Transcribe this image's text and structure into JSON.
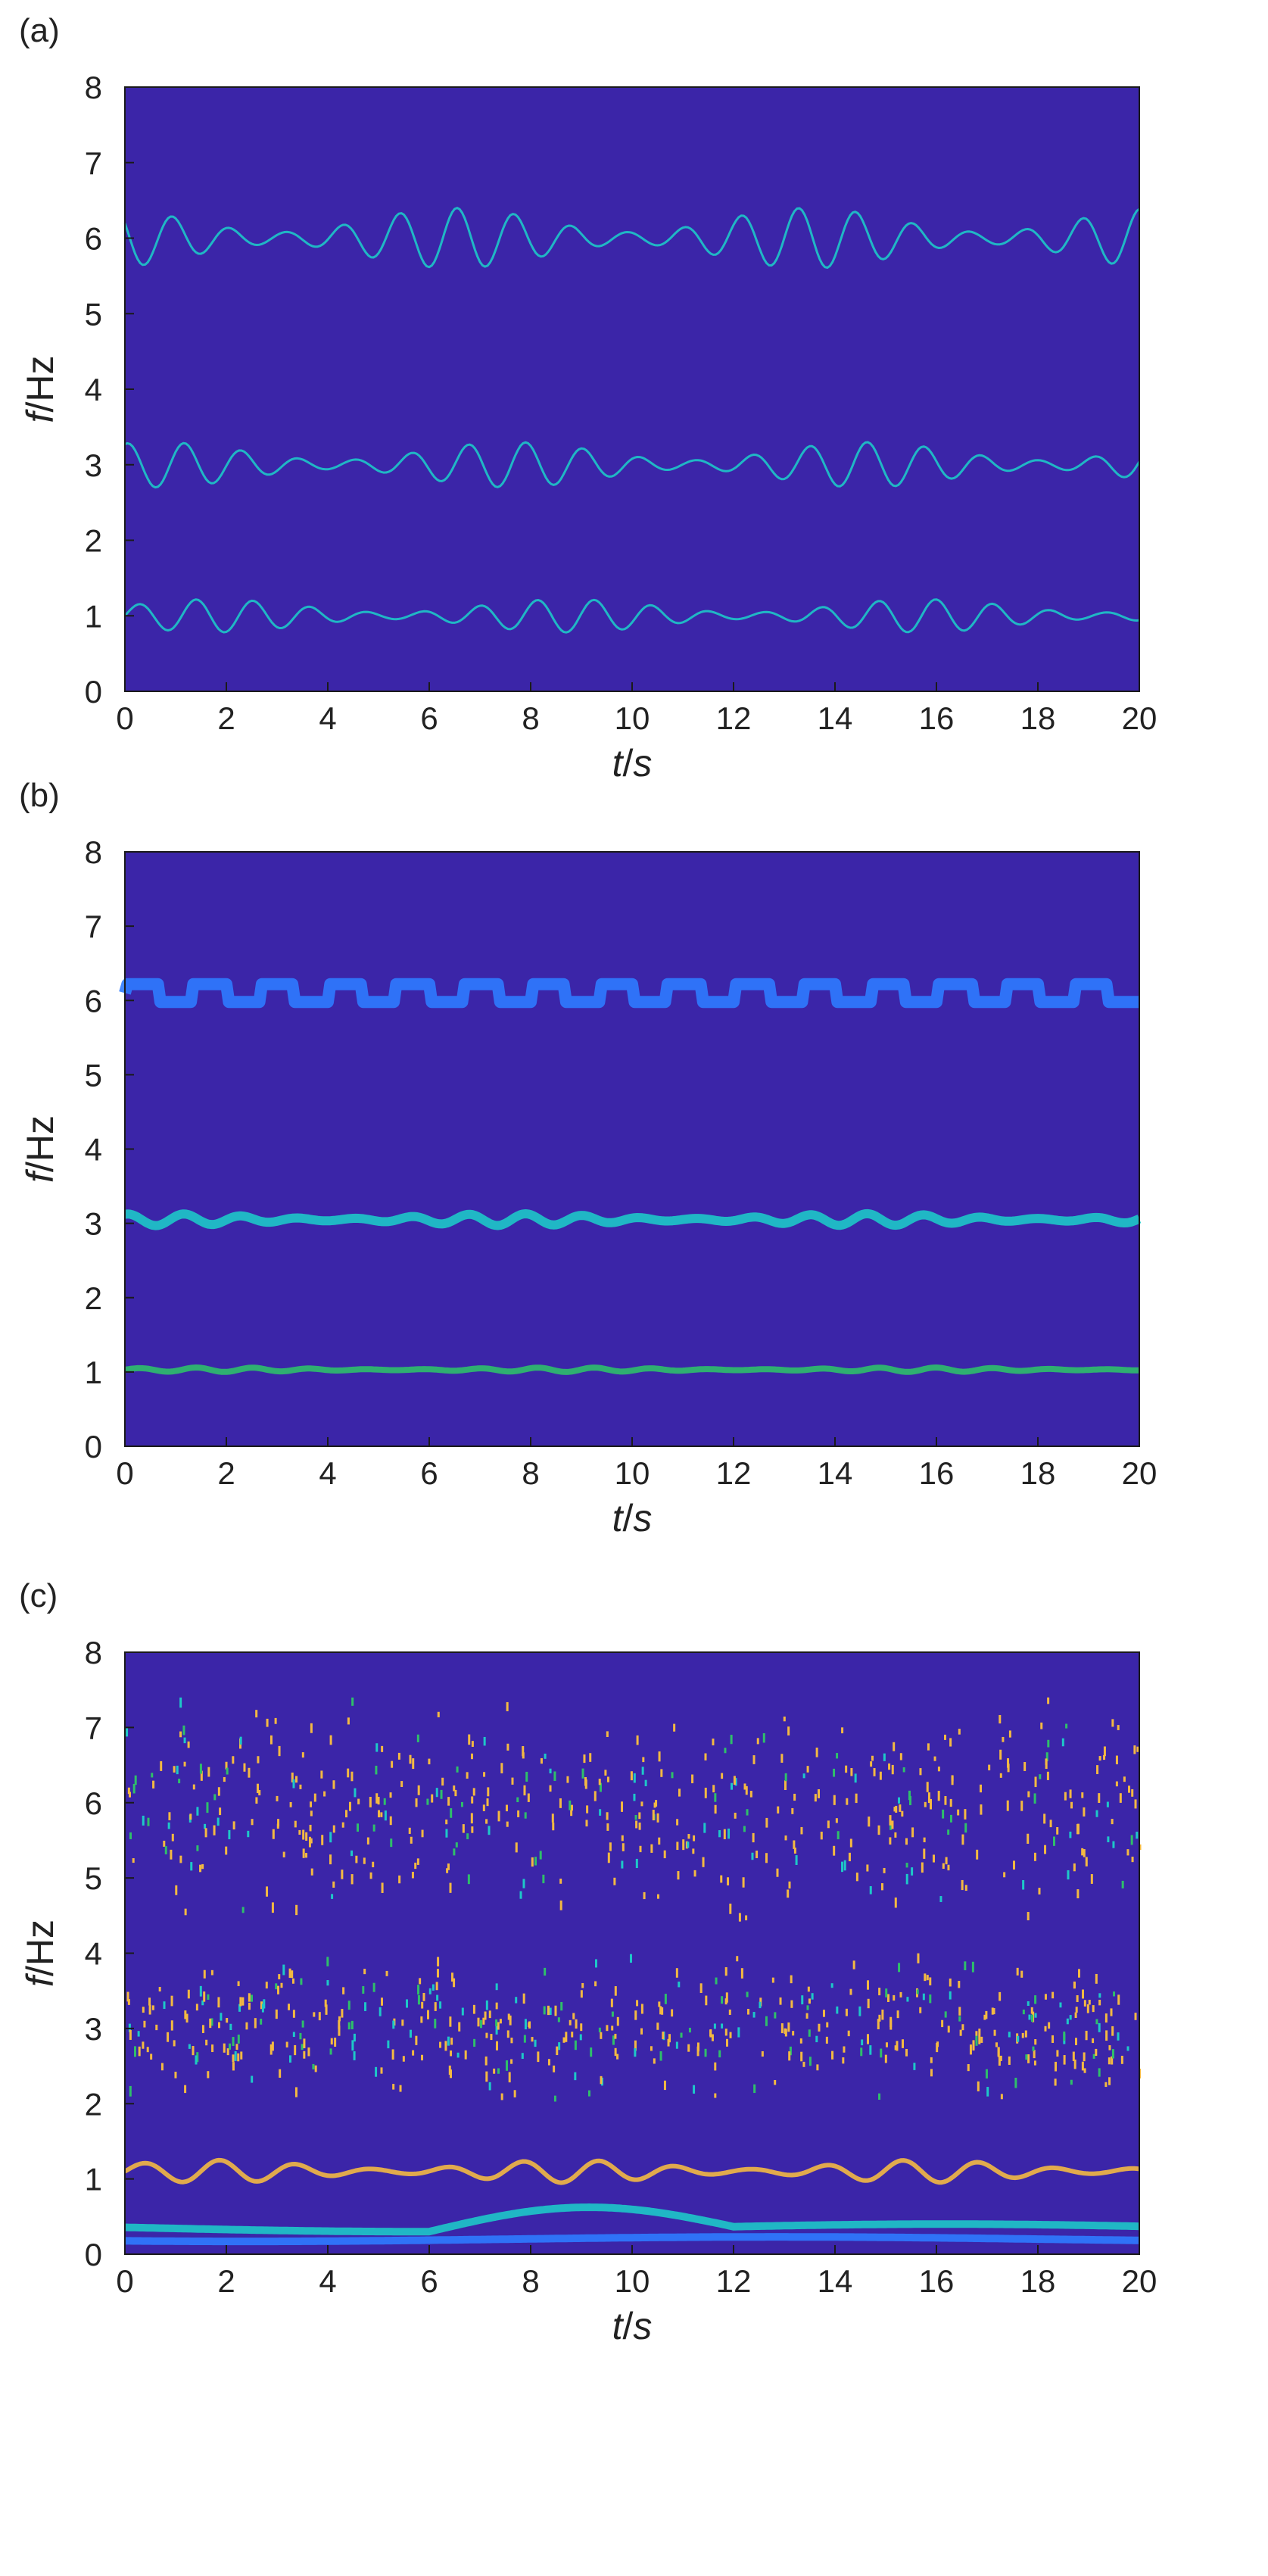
{
  "figure": {
    "background": "#ffffff",
    "plot_background": "#3b25a8",
    "ridge_colors": {
      "low": "#2f7bff",
      "mid": "#1ec8c8",
      "high": "#2fbf6a",
      "peak": "#f4b942"
    }
  },
  "chart_data": [
    {
      "type": "heatmap",
      "panel_label": "(a)",
      "xlabel": "t/s",
      "ylabel": "f/Hz",
      "xlim": [
        0,
        20
      ],
      "ylim": [
        0,
        8
      ],
      "x_ticks": [
        "0",
        "2",
        "4",
        "6",
        "8",
        "10",
        "12",
        "14",
        "16",
        "18",
        "20"
      ],
      "y_ticks": [
        "0",
        "1",
        "2",
        "3",
        "4",
        "5",
        "6",
        "7",
        "8"
      ],
      "grid": false,
      "ridges": [
        {
          "center": 1.0,
          "amplitude": 0.22,
          "style": "thin-wavy"
        },
        {
          "center": 3.0,
          "amplitude": 0.3,
          "style": "thin-wavy"
        },
        {
          "center": 6.0,
          "amplitude": 0.4,
          "style": "thin-wavy"
        }
      ]
    },
    {
      "type": "heatmap",
      "panel_label": "(b)",
      "xlabel": "t/s",
      "ylabel": "f/Hz",
      "xlim": [
        0,
        20
      ],
      "ylim": [
        0,
        8
      ],
      "x_ticks": [
        "0",
        "2",
        "4",
        "6",
        "8",
        "10",
        "12",
        "14",
        "16",
        "18",
        "20"
      ],
      "y_ticks": [
        "0",
        "1",
        "2",
        "3",
        "4",
        "5",
        "6",
        "7",
        "8"
      ],
      "grid": false,
      "ridges": [
        {
          "center": 1.03,
          "amplitude": 0.03,
          "style": "smooth-band"
        },
        {
          "center": 3.05,
          "amplitude": 0.08,
          "style": "smooth-band"
        },
        {
          "center": 6.1,
          "amplitude": 0.2,
          "style": "blocky-band"
        }
      ]
    },
    {
      "type": "heatmap",
      "panel_label": "(c)",
      "xlabel": "t/s",
      "ylabel": "f/Hz",
      "xlim": [
        0,
        20
      ],
      "ylim": [
        0,
        8
      ],
      "x_ticks": [
        "0",
        "2",
        "4",
        "6",
        "8",
        "10",
        "12",
        "14",
        "16",
        "18",
        "20"
      ],
      "y_ticks": [
        "0",
        "1",
        "2",
        "3",
        "4",
        "5",
        "6",
        "7",
        "8"
      ],
      "grid": false,
      "ridges": [
        {
          "center": 1.1,
          "amplitude": 0.15,
          "style": "thick-wavy"
        },
        {
          "center": 3.05,
          "amplitude": 0.2,
          "style": "scatter"
        },
        {
          "center": 6.0,
          "amplitude": 0.6,
          "style": "scatter"
        },
        {
          "center": 0.35,
          "amplitude": 0.05,
          "style": "low-band"
        },
        {
          "center": 0.2,
          "amplitude": 0.03,
          "style": "low-band"
        }
      ]
    }
  ]
}
